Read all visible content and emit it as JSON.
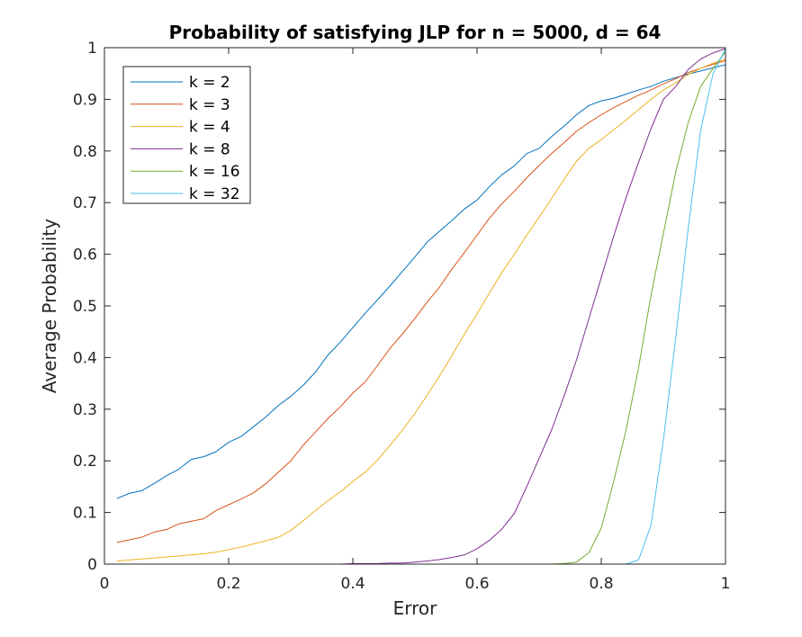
{
  "chart_data": {
    "type": "line",
    "title": "Probability of satisfying JLP for n = 5000, d = 64",
    "xlabel": "Error",
    "ylabel": "Average Probability",
    "xlim": [
      0,
      1
    ],
    "ylim": [
      0,
      1
    ],
    "xticks": [
      0,
      0.2,
      0.4,
      0.6,
      0.8,
      1
    ],
    "xtick_labels": [
      "0",
      "0.2",
      "0.4",
      "0.6",
      "0.8",
      "1"
    ],
    "yticks": [
      0,
      0.1,
      0.2,
      0.3,
      0.4,
      0.5,
      0.6,
      0.7,
      0.8,
      0.9,
      1
    ],
    "ytick_labels": [
      "0",
      "0.1",
      "0.2",
      "0.3",
      "0.4",
      "0.5",
      "0.6",
      "0.7",
      "0.8",
      "0.9",
      "1"
    ],
    "grid": false,
    "legend_position": "top-left",
    "x": [
      0.02,
      0.04,
      0.06,
      0.08,
      0.1,
      0.12,
      0.14,
      0.16,
      0.18,
      0.2,
      0.22,
      0.24,
      0.26,
      0.28,
      0.3,
      0.32,
      0.34,
      0.36,
      0.38,
      0.4,
      0.42,
      0.44,
      0.46,
      0.48,
      0.5,
      0.52,
      0.54,
      0.56,
      0.58,
      0.6,
      0.62,
      0.64,
      0.66,
      0.68,
      0.7,
      0.72,
      0.74,
      0.76,
      0.78,
      0.8,
      0.82,
      0.84,
      0.86,
      0.88,
      0.9,
      0.92,
      0.94,
      0.96,
      0.98,
      1.0
    ],
    "series": [
      {
        "name": "k = 2",
        "color": "#0072bd",
        "values": [
          0.127,
          0.137,
          0.142,
          0.156,
          0.171,
          0.184,
          0.203,
          0.208,
          0.218,
          0.236,
          0.247,
          0.266,
          0.285,
          0.307,
          0.325,
          0.346,
          0.372,
          0.405,
          0.43,
          0.458,
          0.486,
          0.512,
          0.539,
          0.567,
          0.595,
          0.624,
          0.645,
          0.666,
          0.688,
          0.705,
          0.731,
          0.754,
          0.771,
          0.795,
          0.805,
          0.828,
          0.848,
          0.87,
          0.888,
          0.897,
          0.902,
          0.91,
          0.918,
          0.925,
          0.935,
          0.942,
          0.949,
          0.955,
          0.961,
          0.967
        ]
      },
      {
        "name": "k = 3",
        "color": "#d95319",
        "values": [
          0.042,
          0.047,
          0.052,
          0.062,
          0.067,
          0.078,
          0.083,
          0.088,
          0.104,
          0.115,
          0.126,
          0.138,
          0.156,
          0.178,
          0.2,
          0.23,
          0.256,
          0.282,
          0.305,
          0.331,
          0.353,
          0.385,
          0.418,
          0.446,
          0.476,
          0.508,
          0.537,
          0.572,
          0.604,
          0.637,
          0.67,
          0.698,
          0.722,
          0.748,
          0.772,
          0.795,
          0.816,
          0.838,
          0.855,
          0.87,
          0.884,
          0.896,
          0.908,
          0.918,
          0.93,
          0.94,
          0.952,
          0.96,
          0.968,
          0.975
        ]
      },
      {
        "name": "k = 4",
        "color": "#edb120",
        "values": [
          0.006,
          0.008,
          0.01,
          0.012,
          0.014,
          0.016,
          0.018,
          0.02,
          0.023,
          0.028,
          0.033,
          0.039,
          0.045,
          0.052,
          0.065,
          0.084,
          0.104,
          0.123,
          0.14,
          0.16,
          0.178,
          0.202,
          0.23,
          0.26,
          0.292,
          0.328,
          0.365,
          0.405,
          0.446,
          0.485,
          0.525,
          0.565,
          0.6,
          0.637,
          0.672,
          0.708,
          0.745,
          0.78,
          0.805,
          0.822,
          0.841,
          0.86,
          0.88,
          0.9,
          0.918,
          0.932,
          0.948,
          0.96,
          0.97,
          0.978
        ]
      },
      {
        "name": "k = 8",
        "color": "#7e2f8e",
        "values": [
          0.0,
          0.0,
          0.0,
          0.0,
          0.0,
          0.0,
          0.0,
          0.0,
          0.0,
          0.0,
          0.0,
          0.0,
          0.0,
          0.0,
          0.0,
          0.0,
          0.0,
          0.0,
          0.0,
          0.001,
          0.001,
          0.001,
          0.002,
          0.002,
          0.004,
          0.006,
          0.009,
          0.013,
          0.018,
          0.03,
          0.046,
          0.068,
          0.098,
          0.15,
          0.205,
          0.26,
          0.325,
          0.395,
          0.475,
          0.555,
          0.635,
          0.71,
          0.778,
          0.843,
          0.9,
          0.925,
          0.958,
          0.978,
          0.99,
          0.998
        ]
      },
      {
        "name": "k = 16",
        "color": "#77ac30",
        "values": [
          0.0,
          0.0,
          0.0,
          0.0,
          0.0,
          0.0,
          0.0,
          0.0,
          0.0,
          0.0,
          0.0,
          0.0,
          0.0,
          0.0,
          0.0,
          0.0,
          0.0,
          0.0,
          0.0,
          0.0,
          0.0,
          0.0,
          0.0,
          0.0,
          0.0,
          0.0,
          0.0,
          0.0,
          0.0,
          0.0,
          0.0,
          0.0,
          0.0,
          0.0,
          0.0,
          0.0,
          0.001,
          0.004,
          0.022,
          0.07,
          0.16,
          0.26,
          0.38,
          0.52,
          0.64,
          0.76,
          0.855,
          0.925,
          0.96,
          0.992
        ]
      },
      {
        "name": "k = 32",
        "color": "#4dbeee",
        "values": [
          0.0,
          0.0,
          0.0,
          0.0,
          0.0,
          0.0,
          0.0,
          0.0,
          0.0,
          0.0,
          0.0,
          0.0,
          0.0,
          0.0,
          0.0,
          0.0,
          0.0,
          0.0,
          0.0,
          0.0,
          0.0,
          0.0,
          0.0,
          0.0,
          0.0,
          0.0,
          0.0,
          0.0,
          0.0,
          0.0,
          0.0,
          0.0,
          0.0,
          0.0,
          0.0,
          0.0,
          0.0,
          0.0,
          0.0,
          0.0,
          0.0,
          0.0,
          0.008,
          0.075,
          0.24,
          0.44,
          0.65,
          0.84,
          0.95,
          0.998
        ]
      }
    ]
  }
}
